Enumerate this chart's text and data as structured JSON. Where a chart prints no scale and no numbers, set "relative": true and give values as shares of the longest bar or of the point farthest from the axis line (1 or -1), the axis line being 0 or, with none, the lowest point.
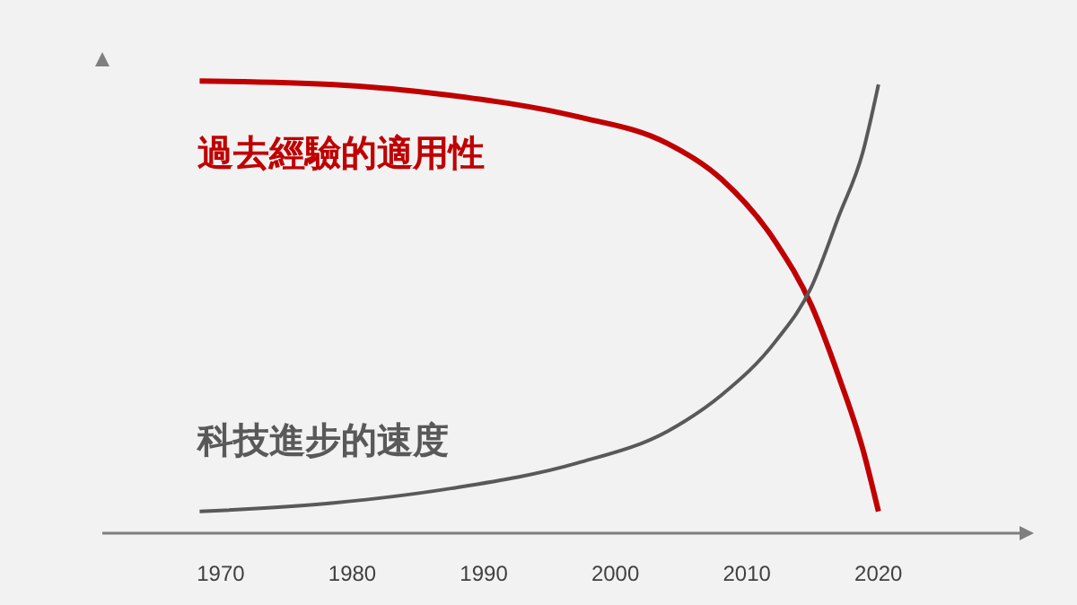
{
  "chart_data": {
    "type": "line",
    "relative": true,
    "xlim": [
      1961,
      2031
    ],
    "xticks": [
      1970,
      1980,
      1990,
      2000,
      2010,
      2020
    ],
    "grid": false,
    "legend": false,
    "marker": "none",
    "line_style": "solid",
    "series": [
      {
        "name": "過去經驗的適用性",
        "color": "#c00000",
        "x": [
          1968.4,
          1978.6,
          1987.5,
          1997.1,
          2004.0,
          2008.1,
          2012.2,
          2014.9,
          2017.0,
          2018.8,
          2020
        ],
        "values": [
          1.0,
          0.992,
          0.968,
          0.921,
          0.861,
          0.782,
          0.643,
          0.504,
          0.345,
          0.187,
          0.048
        ]
      },
      {
        "name": "科技進步的速度",
        "color": "#595959",
        "x": [
          1968.4,
          1978.6,
          1987.5,
          1997.1,
          2004.0,
          2008.1,
          2012.2,
          2014.9,
          2017.0,
          2018.8,
          2020
        ],
        "values": [
          0.048,
          0.067,
          0.099,
          0.155,
          0.226,
          0.306,
          0.425,
          0.544,
          0.702,
          0.841,
          0.992
        ]
      }
    ]
  }
}
